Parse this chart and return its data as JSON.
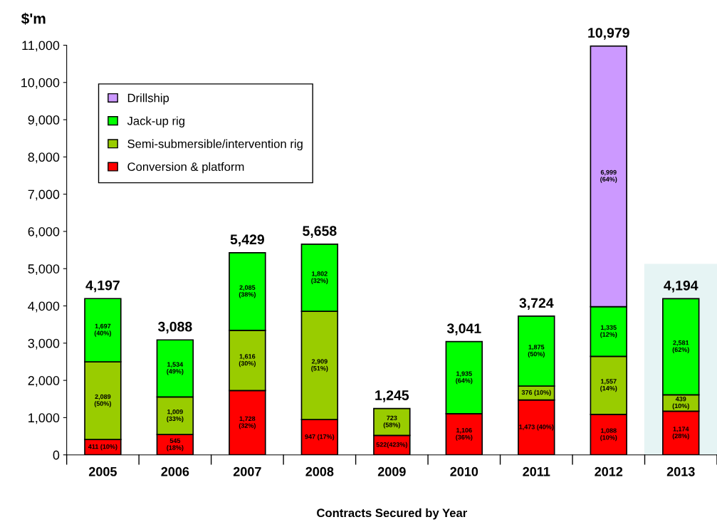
{
  "chart_data": {
    "type": "bar",
    "stacked": true,
    "xlabel": "Contracts Secured by Year",
    "ylabel": "$'m",
    "categories": [
      "2005",
      "2006",
      "2007",
      "2008",
      "2009",
      "2010",
      "2011",
      "2012",
      "2013"
    ],
    "series": [
      {
        "name": "Conversion & platform",
        "color": "#ff0000",
        "values": [
          411,
          545,
          1728,
          947,
          522,
          1106,
          1473,
          1088,
          1174
        ],
        "value_labels": [
          "411 (10%)",
          "545\n(18%)",
          "1,728\n(32%)",
          "947 (17%)",
          "522(423%)",
          "1,106\n(36%)",
          "1,473 (40%)",
          "1,088\n(10%)",
          "1,174\n(28%)"
        ]
      },
      {
        "name": "Semi-submersible/intervention rig",
        "color": "#99cc00",
        "values": [
          2089,
          1009,
          1616,
          2909,
          723,
          null,
          376,
          1557,
          439
        ],
        "value_labels": [
          "2,089\n(50%)",
          "1,009\n(33%)",
          "1,616\n(30%)",
          "2,909\n(51%)",
          "723\n(58%)",
          null,
          "376 (10%)",
          "1,557\n(14%)",
          "439\n(10%)"
        ]
      },
      {
        "name": "Jack-up rig",
        "color": "#00ff00",
        "values": [
          1697,
          1534,
          2085,
          1802,
          null,
          1935,
          1875,
          1335,
          2581
        ],
        "value_labels": [
          "1,697\n(40%)",
          "1,534\n(49%)",
          "2,085\n(38%)",
          "1,802\n(32%)",
          null,
          "1,935\n(64%)",
          "1,875\n(50%)",
          "1,335\n(12%)",
          "2,581\n(62%)"
        ]
      },
      {
        "name": "Drillship",
        "color": "#cc99ff",
        "values": [
          null,
          null,
          null,
          null,
          null,
          null,
          null,
          6999,
          null
        ],
        "value_labels": [
          null,
          null,
          null,
          null,
          null,
          null,
          null,
          "6,999\n(64%)",
          null
        ]
      }
    ],
    "totals": [
      "4,197",
      "3,088",
      "5,429",
      "5,658",
      "1,245",
      "3,041",
      "3,724",
      "10,979",
      "4,194"
    ],
    "bands": [
      {
        "axis": "x",
        "from": "2013",
        "to": "2013",
        "color": "#e6f4f4"
      }
    ],
    "ylim": [
      0,
      11000
    ],
    "yticks": [
      0,
      {
        "value": 1000,
        "label": "1,000"
      },
      {
        "value": 2000,
        "label": "2,000"
      },
      {
        "value": 3000,
        "label": "3,000"
      },
      {
        "value": 4000,
        "label": "4,000"
      },
      {
        "value": 5000,
        "label": "5,000"
      },
      {
        "value": 6000,
        "label": "6,000"
      },
      {
        "value": 7000,
        "label": "7,000"
      },
      {
        "value": 8000,
        "label": "8,000"
      },
      {
        "value": 9000,
        "label": "9,000"
      },
      {
        "value": 10000,
        "label": "10,000"
      },
      {
        "value": 11000,
        "label": "11,000"
      }
    ],
    "grid": false,
    "legend": "top left"
  }
}
